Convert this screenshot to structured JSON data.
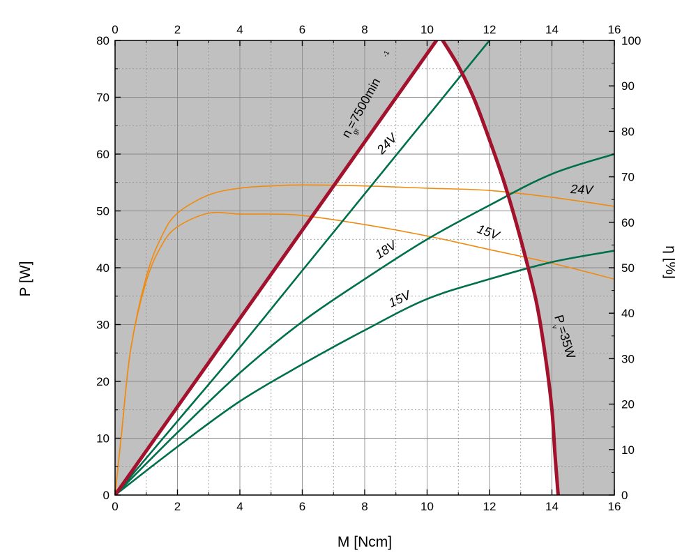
{
  "chart_data": {
    "type": "line",
    "xlabel": "M [Ncm]",
    "ylabel": "P [W]",
    "y2label": "η [%]",
    "xlim": [
      0,
      16
    ],
    "ylim": [
      0,
      80
    ],
    "y2lim": [
      0,
      100
    ],
    "x_ticks": [
      "0",
      "2",
      "4",
      "6",
      "8",
      "10",
      "12",
      "14",
      "16"
    ],
    "y_ticks": [
      "0",
      "10",
      "20",
      "30",
      "40",
      "50",
      "60",
      "70",
      "80"
    ],
    "y2_ticks": [
      "0",
      "10",
      "20",
      "30",
      "40",
      "50",
      "60",
      "70",
      "80",
      "90",
      "100"
    ],
    "grid": true,
    "colors": {
      "shade": "#c0c0c0",
      "limit": "#a3122d",
      "power": "#00704a",
      "efficiency": "#f08a10",
      "grid": "#8a8a8a"
    },
    "limits": {
      "speed_limit_label": "n  =7500min",
      "speed_limit_sub": "gr",
      "speed_limit_sup": "-1",
      "speed_limit": [
        [
          0,
          0
        ],
        [
          10.3,
          80
        ]
      ],
      "power_loss_label": "P =35W",
      "power_loss_sub": "v",
      "power_loss": [
        [
          10.5,
          80
        ],
        [
          11.0,
          75.5
        ],
        [
          11.5,
          69.8
        ],
        [
          12.0,
          62.5
        ],
        [
          12.5,
          54.5
        ],
        [
          13.0,
          45
        ],
        [
          13.5,
          34
        ],
        [
          13.8,
          24
        ],
        [
          14.0,
          15
        ],
        [
          14.1,
          7
        ],
        [
          14.2,
          0
        ]
      ]
    },
    "power_curves": [
      {
        "label": "24V",
        "points": [
          [
            0,
            0
          ],
          [
            2,
            13
          ],
          [
            4,
            26
          ],
          [
            6,
            39.5
          ],
          [
            8,
            53
          ],
          [
            10,
            66.5
          ],
          [
            12,
            80
          ],
          [
            12.95,
            86
          ]
        ]
      },
      {
        "label": "18V",
        "points": [
          [
            0,
            0
          ],
          [
            2,
            11
          ],
          [
            4,
            21.5
          ],
          [
            6,
            30.5
          ],
          [
            8,
            38
          ],
          [
            10,
            45
          ],
          [
            12,
            51
          ],
          [
            14,
            56.5
          ],
          [
            16,
            60
          ]
        ]
      },
      {
        "label": "15V",
        "points": [
          [
            0,
            0
          ],
          [
            2,
            8.5
          ],
          [
            4,
            16.5
          ],
          [
            6,
            23
          ],
          [
            8,
            29
          ],
          [
            10,
            34.5
          ],
          [
            12,
            38
          ],
          [
            14,
            41
          ],
          [
            16,
            43
          ]
        ]
      }
    ],
    "efficiency_curves": [
      {
        "label": "24V",
        "points": [
          [
            0,
            0
          ],
          [
            0.2,
            13
          ],
          [
            0.5,
            32
          ],
          [
            1,
            48
          ],
          [
            1.5,
            57
          ],
          [
            2,
            62
          ],
          [
            3,
            66
          ],
          [
            4,
            67.5
          ],
          [
            5,
            68
          ],
          [
            6,
            68.2
          ],
          [
            8,
            68
          ],
          [
            10,
            67.5
          ],
          [
            12,
            67
          ],
          [
            14,
            65.5
          ],
          [
            16,
            63.5
          ]
        ]
      },
      {
        "label": "15V",
        "points": [
          [
            0,
            0
          ],
          [
            0.2,
            13
          ],
          [
            0.5,
            32
          ],
          [
            1,
            47
          ],
          [
            1.5,
            55
          ],
          [
            2,
            59
          ],
          [
            3,
            62
          ],
          [
            4,
            61.8
          ],
          [
            5,
            61.8
          ],
          [
            6,
            61.5
          ],
          [
            8,
            59.5
          ],
          [
            10,
            57
          ],
          [
            12,
            54
          ],
          [
            14,
            51
          ],
          [
            16,
            47.5
          ]
        ]
      }
    ],
    "annotations": {
      "power_24": "24V",
      "power_18": "18V",
      "power_15": "15V",
      "eff_24": "24V",
      "eff_15": "15V"
    }
  }
}
